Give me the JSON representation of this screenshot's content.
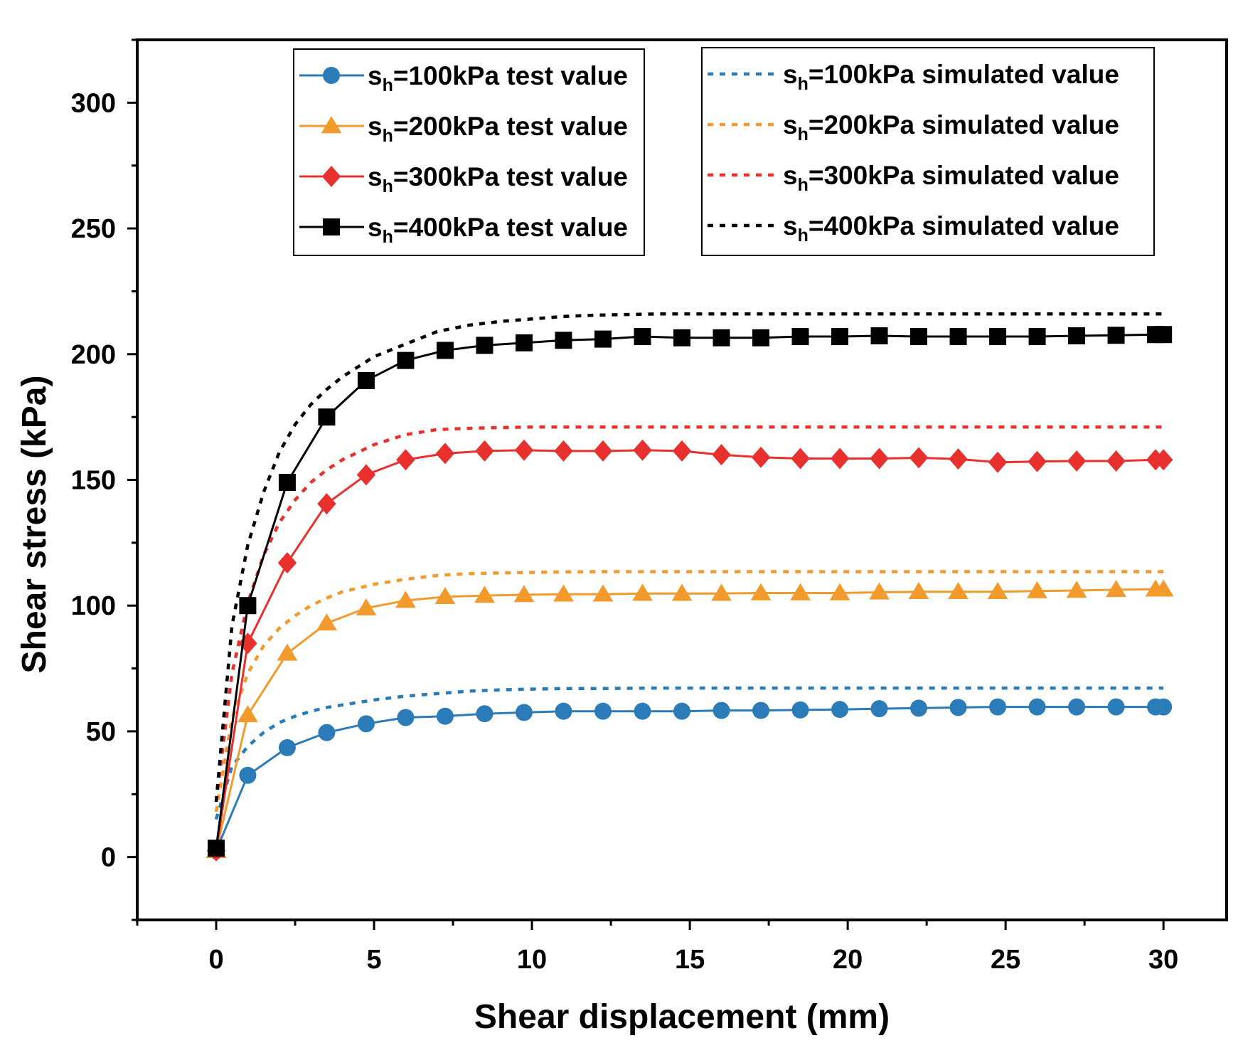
{
  "chart_data": {
    "type": "line",
    "title": "",
    "xlabel": "Shear displacement (mm)",
    "ylabel": "Shear stress (kPa)",
    "xlim": [
      -2.5,
      32
    ],
    "ylim": [
      -25,
      325
    ],
    "xticks": [
      0,
      5,
      10,
      15,
      20,
      25,
      30
    ],
    "yticks": [
      0,
      50,
      100,
      150,
      200,
      250,
      300
    ],
    "grid": false,
    "legend_position": "top",
    "test_x": [
      0,
      1,
      2.25,
      3.5,
      4.75,
      6,
      7.25,
      8.5,
      9.75,
      11,
      12.25,
      13.5,
      14.75,
      16,
      17.25,
      18.5,
      19.75,
      21,
      22.25,
      23.5,
      24.75,
      26,
      27.25,
      28.5,
      29.75,
      30
    ],
    "sim_x": [
      0,
      0.5,
      1,
      1.5,
      2,
      2.5,
      3,
      3.5,
      4,
      5,
      6,
      7,
      8,
      9,
      10,
      11,
      12,
      14,
      16,
      18,
      20,
      22,
      24,
      26,
      28,
      30
    ],
    "series": [
      {
        "name_prefix": "s",
        "name_sub": "h",
        "name_suffix": "=100kPa test value",
        "kind": "test",
        "color": "#2b7bb9",
        "marker": "circle",
        "values": [
          2.5,
          32.5,
          43.5,
          49.5,
          53,
          55.5,
          56,
          57,
          57.5,
          58,
          58,
          58,
          58,
          58.3,
          58.3,
          58.5,
          58.7,
          59,
          59.2,
          59.5,
          59.7,
          59.7,
          59.7,
          59.7,
          59.7,
          59.7
        ]
      },
      {
        "name_prefix": "s",
        "name_sub": "h",
        "name_suffix": "=200kPa test value",
        "kind": "test",
        "color": "#f39a2c",
        "marker": "triangle",
        "values": [
          2.5,
          56.5,
          81,
          93,
          99,
          102,
          103.5,
          104,
          104.3,
          104.5,
          104.5,
          104.8,
          104.8,
          104.8,
          105,
          105,
          105,
          105.3,
          105.5,
          105.5,
          105.5,
          105.8,
          106,
          106.3,
          106.5,
          106.5
        ]
      },
      {
        "name_prefix": "s",
        "name_sub": "h",
        "name_suffix": "=300kPa test value",
        "kind": "test",
        "color": "#e8302e",
        "marker": "diamond",
        "values": [
          2.5,
          85,
          117,
          140.5,
          152,
          158,
          160.5,
          161.5,
          161.8,
          161.5,
          161.5,
          161.8,
          161.5,
          160,
          159,
          158.5,
          158.5,
          158.5,
          158.8,
          158.3,
          157,
          157.3,
          157.5,
          157.5,
          158,
          158
        ]
      },
      {
        "name_prefix": "s",
        "name_sub": "h",
        "name_suffix": "=400kPa test value",
        "kind": "test",
        "color": "#000000",
        "marker": "square",
        "values": [
          3.5,
          100,
          149,
          175,
          189.5,
          197.5,
          201.5,
          203.5,
          204.5,
          205.5,
          206,
          207,
          206.5,
          206.5,
          206.5,
          207,
          207,
          207.3,
          207,
          207,
          207,
          207,
          207.3,
          207.5,
          207.8,
          207.8
        ]
      },
      {
        "name_prefix": "s",
        "name_sub": "h",
        "name_suffix": "=100kPa simulated value",
        "kind": "simulated",
        "color": "#2b7bb9",
        "values": [
          15,
          36,
          44,
          49.5,
          53.5,
          56,
          58,
          59.5,
          60.5,
          62.5,
          64,
          65,
          66,
          66.5,
          66.8,
          67,
          67,
          67.2,
          67.2,
          67.2,
          67.2,
          67.2,
          67.2,
          67.2,
          67.2,
          67.2
        ]
      },
      {
        "name_prefix": "s",
        "name_sub": "h",
        "name_suffix": "=200kPa simulated value",
        "kind": "simulated",
        "color": "#f39a2c",
        "values": [
          18,
          55,
          73,
          84,
          91,
          96,
          100,
          103,
          105.5,
          108.5,
          110.5,
          112,
          112.7,
          113,
          113.2,
          113.4,
          113.5,
          113.5,
          113.5,
          113.5,
          113.5,
          113.5,
          113.5,
          113.5,
          113.5,
          113.5
        ]
      },
      {
        "name_prefix": "s",
        "name_sub": "h",
        "name_suffix": "=300kPa simulated value",
        "kind": "simulated",
        "color": "#e8302e",
        "values": [
          22,
          73,
          101,
          120,
          133,
          142,
          149,
          154,
          158,
          164,
          168,
          170,
          170.5,
          170.8,
          171,
          171,
          171,
          171,
          171,
          171,
          171,
          171,
          171,
          171,
          171,
          171
        ]
      },
      {
        "name_prefix": "s",
        "name_sub": "h",
        "name_suffix": "=400kPa simulated value",
        "kind": "simulated",
        "color": "#000000",
        "values": [
          22,
          92,
          124,
          145,
          161,
          172,
          180,
          186,
          191,
          199,
          204,
          209,
          211.5,
          213,
          214,
          215,
          215.5,
          216,
          216,
          216,
          216,
          216,
          216,
          216,
          216,
          216
        ]
      }
    ]
  }
}
